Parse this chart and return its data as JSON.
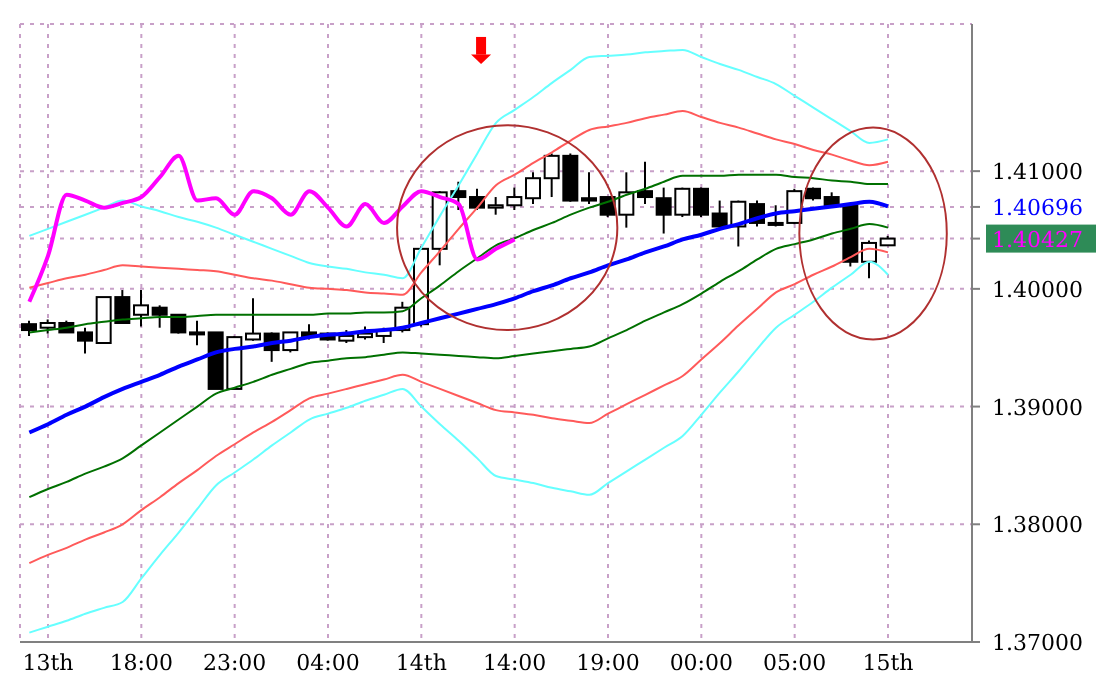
{
  "chart_data": {
    "type": "candlestick",
    "ylim": [
      1.37,
      1.4225
    ],
    "categories": [
      null,
      "13th",
      null,
      null,
      null,
      null,
      "18:00",
      null,
      null,
      null,
      null,
      "23:00",
      null,
      null,
      null,
      null,
      "04:00",
      null,
      null,
      null,
      null,
      "14th",
      null,
      null,
      null,
      null,
      "14:00",
      null,
      null,
      null,
      null,
      "19:00",
      null,
      null,
      null,
      null,
      "00:00",
      null,
      null,
      null,
      null,
      "05:00",
      null,
      null,
      null,
      null,
      "15th",
      null,
      null,
      null,
      null
    ],
    "yticks": [
      {
        "value": 1.37,
        "label": "1.37000"
      },
      {
        "value": 1.38,
        "label": "1.38000"
      },
      {
        "value": 1.39,
        "label": "1.39000"
      },
      {
        "value": 1.4,
        "label": "1.40000"
      },
      {
        "value": 1.41,
        "label": "1.41000"
      },
      1.40696,
      1.40427
    ],
    "grid": true,
    "series": [
      {
        "type": "line",
        "color": "#66ffff",
        "values": [
          1.4045,
          1.4051,
          1.4057,
          1.4063,
          1.4069,
          1.4075,
          1.407,
          1.4066,
          1.4061,
          1.4057,
          1.4052,
          1.4046,
          1.404,
          1.4034,
          1.4028,
          1.4022,
          1.4019,
          1.4017,
          1.4014,
          1.4012,
          1.4009,
          1.4035,
          1.4062,
          1.4088,
          1.4115,
          1.4141,
          1.4152,
          1.4163,
          1.4175,
          1.4186,
          1.4197,
          1.4198,
          1.4199,
          1.4201,
          1.4202,
          1.4203,
          1.4197,
          1.4191,
          1.4186,
          1.418,
          1.4174,
          1.4164,
          1.4154,
          1.4144,
          1.4134,
          1.4124,
          1.4127,
          null,
          null,
          null,
          null
        ]
      },
      {
        "type": "line",
        "color": "#66ffff",
        "values": [
          1.3708,
          1.3713,
          1.3718,
          1.3724,
          1.3729,
          1.3734,
          1.3754,
          1.3774,
          1.3793,
          1.3813,
          1.3833,
          1.3844,
          1.3855,
          1.3867,
          1.3878,
          1.3889,
          1.3894,
          1.3899,
          1.3905,
          1.391,
          1.3915,
          1.39,
          1.3885,
          1.3871,
          1.3856,
          1.3841,
          1.3838,
          1.3835,
          1.3831,
          1.3828,
          1.3825,
          1.3835,
          1.3845,
          1.3855,
          1.3865,
          1.3875,
          1.3893,
          1.3912,
          1.393,
          1.3949,
          1.3967,
          1.3978,
          1.3989,
          1.4001,
          1.4012,
          1.4023,
          1.4012,
          null,
          null,
          null,
          null
        ]
      },
      {
        "type": "line",
        "color": "#ff5a5a",
        "values": [
          1.4001,
          1.4005,
          1.4009,
          1.4012,
          1.4016,
          1.402,
          1.4019,
          1.4018,
          1.4017,
          1.4016,
          1.4015,
          1.4012,
          1.4009,
          1.4007,
          1.4004,
          1.4001,
          1.4,
          1.3999,
          1.3997,
          1.3996,
          1.3995,
          1.4014,
          1.4032,
          1.4051,
          1.4069,
          1.4088,
          1.4097,
          1.4107,
          1.4116,
          1.4126,
          1.4135,
          1.4138,
          1.4141,
          1.4145,
          1.4148,
          1.4151,
          1.4146,
          1.4141,
          1.4137,
          1.4132,
          1.4127,
          1.4123,
          1.4118,
          1.4114,
          1.4109,
          1.4105,
          1.4108,
          null,
          null,
          null,
          null
        ]
      },
      {
        "type": "line",
        "color": "#ff5a5a",
        "values": [
          1.3767,
          1.3774,
          1.378,
          1.3787,
          1.3793,
          1.38,
          1.3812,
          1.3823,
          1.3835,
          1.3846,
          1.3858,
          1.3868,
          1.3878,
          1.3887,
          1.3897,
          1.3907,
          1.3911,
          1.3915,
          1.3919,
          1.3923,
          1.3927,
          1.3921,
          1.3915,
          1.3909,
          1.3903,
          1.3897,
          1.3895,
          1.3893,
          1.389,
          1.3888,
          1.3886,
          1.3894,
          1.3902,
          1.391,
          1.3918,
          1.3926,
          1.394,
          1.3954,
          1.3969,
          1.3983,
          1.3997,
          1.4004,
          1.4012,
          1.4019,
          1.4027,
          1.4034,
          1.4031,
          null,
          null,
          null,
          null
        ]
      },
      {
        "type": "line",
        "color": "#007000",
        "values": [
          1.3963,
          1.3965,
          1.3967,
          1.397,
          1.3972,
          1.3974,
          1.3975,
          1.3976,
          1.3976,
          1.3977,
          1.3978,
          1.3978,
          1.3978,
          1.3978,
          1.3978,
          1.3978,
          1.3979,
          1.3979,
          1.398,
          1.398,
          1.3981,
          1.3992,
          1.4003,
          1.4015,
          1.4026,
          1.4037,
          1.4043,
          1.405,
          1.4056,
          1.4063,
          1.4069,
          1.4074,
          1.408,
          1.4085,
          1.4091,
          1.4096,
          1.4096,
          1.4096,
          1.4097,
          1.4097,
          1.4097,
          1.4095,
          1.4094,
          1.4092,
          1.4091,
          1.4089,
          1.4089,
          null,
          null,
          null,
          null
        ]
      },
      {
        "type": "line",
        "color": "#007000",
        "values": [
          1.3823,
          1.383,
          1.3836,
          1.3843,
          1.3849,
          1.3856,
          1.3867,
          1.3878,
          1.3889,
          1.39,
          1.3911,
          1.3916,
          1.3921,
          1.3927,
          1.3932,
          1.3937,
          1.3939,
          1.3941,
          1.3942,
          1.3944,
          1.3946,
          1.3945,
          1.3944,
          1.3943,
          1.3942,
          1.3941,
          1.3943,
          1.3945,
          1.3947,
          1.3949,
          1.3951,
          1.3958,
          1.3965,
          1.3973,
          1.398,
          1.3987,
          1.3996,
          1.4006,
          1.4015,
          1.4025,
          1.4034,
          1.4038,
          1.4042,
          1.4047,
          1.4051,
          1.4055,
          1.4052,
          null,
          null,
          null,
          null
        ]
      },
      {
        "type": "line",
        "color": "#0000ff",
        "values": [
          1.3878,
          1.3885,
          1.3893,
          1.39,
          1.3908,
          1.3915,
          1.3921,
          1.3927,
          1.3934,
          1.394,
          1.3946,
          1.3949,
          1.3951,
          1.3954,
          1.3956,
          1.3959,
          1.3961,
          1.3962,
          1.3964,
          1.3965,
          1.3967,
          1.3971,
          1.3975,
          1.3979,
          1.3983,
          1.3987,
          1.3992,
          1.3998,
          1.4003,
          1.4009,
          1.4014,
          1.402,
          1.4025,
          1.4031,
          1.4036,
          1.4042,
          1.4046,
          1.4051,
          1.4055,
          1.406,
          1.4064,
          1.4066,
          1.4068,
          1.407,
          1.4072,
          1.4074,
          1.407,
          null,
          null,
          null,
          null
        ]
      },
      {
        "type": "line",
        "color": "#ff00ff",
        "values": [
          1.3989,
          1.4028,
          1.408,
          1.4075,
          1.4069,
          1.4073,
          1.4078,
          1.4095,
          1.4113,
          1.4075,
          1.4077,
          1.4063,
          1.4083,
          1.4077,
          1.4063,
          1.4083,
          1.4069,
          1.4053,
          1.4072,
          1.4056,
          1.407,
          1.4083,
          1.4078,
          1.4072,
          1.4025,
          1.4034,
          1.4042,
          null,
          null,
          null,
          null,
          null,
          null,
          null,
          null,
          null,
          null,
          null,
          null,
          null,
          null,
          null,
          null,
          null,
          null,
          null,
          null,
          null,
          null,
          null,
          null
        ]
      },
      {
        "color": "#000000",
        "ohlc": [
          [
            1.397,
            1.3973,
            1.396,
            1.3965
          ],
          [
            1.3967,
            1.3974,
            1.3962,
            1.3971
          ],
          [
            1.3971,
            1.3973,
            1.3963,
            1.3963
          ],
          [
            1.3963,
            1.3967,
            1.3945,
            1.3956
          ],
          [
            1.3954,
            1.3993,
            1.3954,
            1.3993
          ],
          [
            1.3993,
            1.3999,
            1.3971,
            1.3971
          ],
          [
            1.3978,
            1.3999,
            1.3968,
            1.3986
          ],
          [
            1.3984,
            1.3986,
            1.3967,
            1.3978
          ],
          [
            1.3978,
            1.3978,
            1.3962,
            1.3963
          ],
          [
            1.3963,
            1.3973,
            1.3952,
            1.3962
          ],
          [
            1.3963,
            1.3963,
            1.3915,
            1.3915
          ],
          [
            1.3915,
            1.396,
            1.3915,
            1.3959
          ],
          [
            1.3957,
            1.3992,
            1.3956,
            1.3962
          ],
          [
            1.3962,
            1.3963,
            1.3938,
            1.3948
          ],
          [
            1.3948,
            1.3963,
            1.3946,
            1.3963
          ],
          [
            1.3963,
            1.397,
            1.3957,
            1.396
          ],
          [
            1.3962,
            1.3963,
            1.3956,
            1.3957
          ],
          [
            1.3956,
            1.3965,
            1.3954,
            1.396
          ],
          [
            1.3959,
            1.3968,
            1.3957,
            1.3962
          ],
          [
            1.396,
            1.3967,
            1.3954,
            1.3965
          ],
          [
            1.3965,
            1.3989,
            1.3963,
            1.3984
          ],
          [
            1.397,
            1.4036,
            1.3968,
            1.4034
          ],
          [
            1.4034,
            1.4083,
            1.402,
            1.4082
          ],
          [
            1.4083,
            1.4091,
            1.4067,
            1.4078
          ],
          [
            1.4078,
            1.4085,
            1.4067,
            1.4069
          ],
          [
            1.4069,
            1.4078,
            1.4063,
            1.4071
          ],
          [
            1.4071,
            1.4086,
            1.4067,
            1.4078
          ],
          [
            1.4077,
            1.4099,
            1.4072,
            1.4094
          ],
          [
            1.4094,
            1.4115,
            1.4078,
            1.4113
          ],
          [
            1.4113,
            1.4115,
            1.4074,
            1.4075
          ],
          [
            1.4077,
            1.4099,
            1.4072,
            1.4075
          ],
          [
            1.4078,
            1.4078,
            1.4061,
            1.4063
          ],
          [
            1.4063,
            1.4099,
            1.4052,
            1.4082
          ],
          [
            1.4083,
            1.4108,
            1.4072,
            1.4078
          ],
          [
            1.4077,
            1.4086,
            1.4047,
            1.4063
          ],
          [
            1.4063,
            1.4086,
            1.4061,
            1.4085
          ],
          [
            1.4085,
            1.4086,
            1.4061,
            1.4063
          ],
          [
            1.4064,
            1.4075,
            1.4052,
            1.4053
          ],
          [
            1.4053,
            1.4075,
            1.4036,
            1.4074
          ],
          [
            1.4072,
            1.4075,
            1.4053,
            1.4056
          ],
          [
            1.4055,
            1.4071,
            1.4053,
            1.4056
          ],
          [
            1.4056,
            1.4085,
            1.4055,
            1.4083
          ],
          [
            1.4085,
            1.4086,
            1.4075,
            1.4077
          ],
          [
            1.4078,
            1.4082,
            1.4069,
            1.4071
          ],
          [
            1.4071,
            1.4072,
            1.4019,
            1.4023
          ],
          [
            1.4023,
            1.4041,
            1.4009,
            1.4039
          ],
          [
            1.4037,
            1.4045,
            1.4037,
            1.40427
          ],
          null,
          null,
          null,
          null
        ]
      }
    ]
  }
}
